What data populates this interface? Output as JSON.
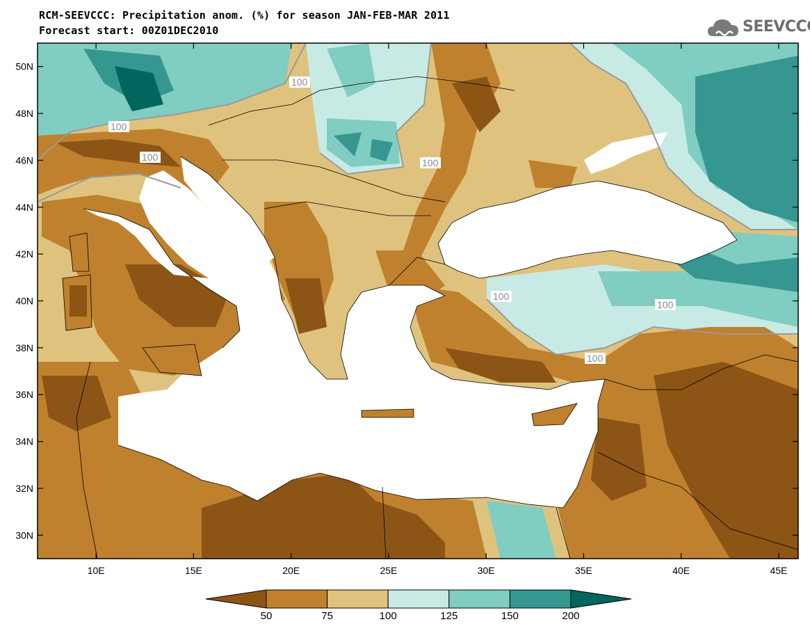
{
  "title": {
    "line1": "RCM-SEEVCCC: Precipitation anom. (%) for season JAN-FEB-MAR 2011",
    "line2": "Forecast start: 00Z01DEC2010"
  },
  "logo": {
    "icon": "cloud-icon",
    "text": "SEEVCCC"
  },
  "map": {
    "lon_range": [
      7,
      46
    ],
    "lat_range": [
      29,
      51
    ],
    "lat_ticks": [
      {
        "value": 30,
        "label": "30N"
      },
      {
        "value": 32,
        "label": "32N"
      },
      {
        "value": 34,
        "label": "34N"
      },
      {
        "value": 36,
        "label": "36N"
      },
      {
        "value": 38,
        "label": "38N"
      },
      {
        "value": 40,
        "label": "40N"
      },
      {
        "value": 42,
        "label": "42N"
      },
      {
        "value": 44,
        "label": "44N"
      },
      {
        "value": 46,
        "label": "46N"
      },
      {
        "value": 48,
        "label": "48N"
      },
      {
        "value": 50,
        "label": "50N"
      }
    ],
    "lon_ticks": [
      {
        "value": 10,
        "label": "10E"
      },
      {
        "value": 15,
        "label": "15E"
      },
      {
        "value": 20,
        "label": "20E"
      },
      {
        "value": 25,
        "label": "25E"
      },
      {
        "value": 30,
        "label": "30E"
      },
      {
        "value": 35,
        "label": "35E"
      },
      {
        "value": 40,
        "label": "40E"
      },
      {
        "value": 45,
        "label": "45E"
      }
    ],
    "contour_labels": [
      "100",
      "100",
      "100",
      "100",
      "100",
      "100",
      "100"
    ]
  },
  "colorbar": {
    "levels": [
      "50",
      "75",
      "100",
      "125",
      "150",
      "200"
    ],
    "colors": [
      "#8c5516",
      "#bf812d",
      "#dfc27d",
      "#c7eae5",
      "#80cdc1",
      "#35978f",
      "#01665e"
    ]
  }
}
